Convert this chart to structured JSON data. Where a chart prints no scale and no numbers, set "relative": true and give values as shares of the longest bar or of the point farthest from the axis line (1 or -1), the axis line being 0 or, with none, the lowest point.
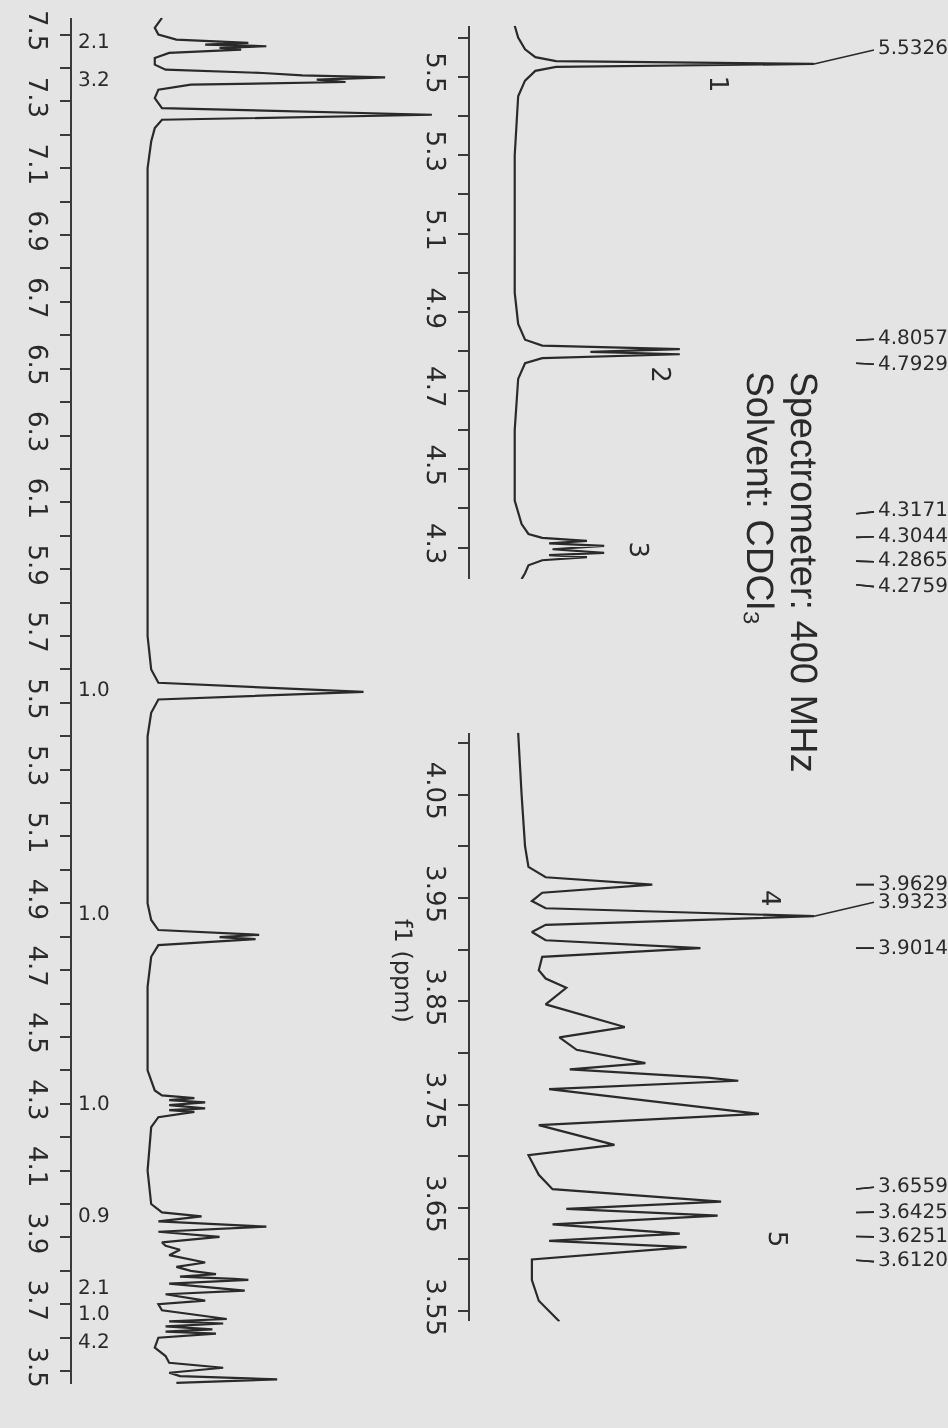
{
  "chart_data": [
    {
      "type": "line",
      "orientation": "horizontal",
      "relative": true,
      "color": "#2a2a2a",
      "x": [
        7.55,
        7.52,
        7.5,
        7.485,
        7.475,
        7.47,
        7.465,
        7.46,
        7.455,
        7.445,
        7.43,
        7.41,
        7.395,
        7.385,
        7.378,
        7.372,
        7.365,
        7.358,
        7.35,
        7.335,
        7.31,
        7.28,
        7.26,
        7.245,
        7.22,
        7.18,
        7.1,
        5.7,
        5.6,
        5.56,
        5.5326,
        5.51,
        5.47,
        5.4,
        4.9,
        4.85,
        4.82,
        4.8057,
        4.799,
        4.7929,
        4.775,
        4.74,
        4.65,
        4.4,
        4.34,
        4.325,
        4.3171,
        4.311,
        4.3044,
        4.296,
        4.2865,
        4.281,
        4.2759,
        4.26,
        4.23,
        4.1,
        4.0,
        3.975,
        3.9629,
        3.948,
        3.9323,
        3.917,
        3.9014,
        3.885,
        3.875,
        3.863,
        3.847,
        3.825,
        3.812,
        3.8,
        3.79,
        3.783,
        3.776,
        3.773,
        3.762,
        3.741,
        3.73,
        3.711,
        3.7,
        3.682,
        3.6559,
        3.649,
        3.6425,
        3.634,
        3.6251,
        3.618,
        3.612,
        3.6,
        3.57,
        3.545,
        3.525,
        3.51,
        3.495,
        3.485,
        3.475,
        3.465
      ],
      "values": [
        0.25,
        0.23,
        0.24,
        0.29,
        0.49,
        0.37,
        0.54,
        0.41,
        0.47,
        0.27,
        0.23,
        0.23,
        0.26,
        0.53,
        0.64,
        0.87,
        0.68,
        0.76,
        0.33,
        0.24,
        0.23,
        0.25,
        1.0,
        0.25,
        0.23,
        0.22,
        0.21,
        0.21,
        0.22,
        0.24,
        0.81,
        0.24,
        0.22,
        0.21,
        0.21,
        0.22,
        0.24,
        0.52,
        0.41,
        0.51,
        0.24,
        0.22,
        0.21,
        0.21,
        0.23,
        0.25,
        0.34,
        0.27,
        0.37,
        0.27,
        0.37,
        0.27,
        0.34,
        0.24,
        0.22,
        0.21,
        0.22,
        0.25,
        0.36,
        0.24,
        0.54,
        0.24,
        0.41,
        0.25,
        0.26,
        0.3,
        0.27,
        0.37,
        0.29,
        0.33,
        0.4,
        0.3,
        0.45,
        0.49,
        0.27,
        0.48,
        0.26,
        0.37,
        0.24,
        0.25,
        0.43,
        0.27,
        0.42,
        0.26,
        0.39,
        0.26,
        0.4,
        0.24,
        0.23,
        0.26,
        0.27,
        0.42,
        0.27,
        0.3,
        0.57,
        0.29
      ],
      "ylim": [
        3.46,
        7.55
      ],
      "yticks": [
        7.5,
        {
          "value": 7.4,
          "label": null
        },
        7.3,
        {
          "value": 7.2,
          "label": null
        },
        7.1,
        {
          "value": 7.0,
          "label": null
        },
        6.9,
        {
          "value": 6.8,
          "label": null
        },
        6.7,
        {
          "value": 6.6,
          "label": null
        },
        6.5,
        {
          "value": 6.4,
          "label": null
        },
        6.3,
        {
          "value": 6.2,
          "label": null
        },
        6.1,
        {
          "value": 6.0,
          "label": null
        },
        5.9,
        {
          "value": 5.8,
          "label": null
        },
        5.7,
        {
          "value": 5.6,
          "label": null
        },
        5.5,
        {
          "value": 5.4,
          "label": null
        },
        5.3,
        {
          "value": 5.2,
          "label": null
        },
        5.1,
        {
          "value": 5.0,
          "label": null
        },
        4.9,
        {
          "value": 4.8,
          "label": null
        },
        4.7,
        {
          "value": 4.6,
          "label": null
        },
        4.5,
        {
          "value": 4.4,
          "label": null
        },
        4.3,
        {
          "value": 4.2,
          "label": null
        },
        4.1,
        {
          "value": 4.0,
          "label": null
        },
        3.9,
        {
          "value": 3.8,
          "label": null
        },
        3.7,
        {
          "value": 3.6,
          "label": null
        },
        3.5
      ],
      "annotations": [
        "2.1",
        "3.2",
        "1.0",
        "1.0",
        "1.0",
        "0.9",
        "2.1",
        "1.0",
        "4.2"
      ]
    },
    {
      "type": "line",
      "orientation": "horizontal",
      "relative": true,
      "color": "#2a2a2a",
      "x": [
        5.63,
        5.6,
        5.57,
        5.55,
        5.54,
        5.5326,
        5.525,
        5.515,
        5.49,
        5.45,
        5.3,
        4.95,
        4.87,
        4.83,
        4.815,
        4.8057,
        4.799,
        4.7929,
        4.783,
        4.77,
        4.73,
        4.6,
        4.42,
        4.36,
        4.335,
        4.325,
        4.3171,
        4.311,
        4.3044,
        4.296,
        4.2865,
        4.281,
        4.2759,
        4.268,
        4.255,
        4.235,
        4.22
      ],
      "values": [
        0.13,
        0.14,
        0.16,
        0.19,
        0.25,
        1.0,
        0.25,
        0.19,
        0.16,
        0.14,
        0.13,
        0.13,
        0.14,
        0.16,
        0.21,
        0.61,
        0.35,
        0.61,
        0.21,
        0.16,
        0.14,
        0.13,
        0.13,
        0.15,
        0.17,
        0.21,
        0.34,
        0.23,
        0.39,
        0.24,
        0.39,
        0.23,
        0.34,
        0.21,
        0.17,
        0.16,
        0.15
      ],
      "ylim": [
        4.22,
        5.63
      ],
      "yticks": [
        {
          "value": 5.6,
          "label": null
        },
        5.5,
        {
          "value": 5.4,
          "label": null
        },
        5.3,
        {
          "value": 5.2,
          "label": null
        },
        5.1,
        {
          "value": 5.0,
          "label": null
        },
        4.9,
        {
          "value": 4.8,
          "label": null
        },
        4.7,
        {
          "value": 4.6,
          "label": null
        },
        4.5,
        {
          "value": 4.4,
          "label": null
        },
        4.3
      ],
      "annotations": [
        "1",
        "2",
        "3",
        {
          "text": "5.5326",
          "x": 1.0,
          "y": 5.5326
        },
        {
          "text": "4.8057",
          "x": 0.61,
          "y": 4.8057
        },
        {
          "text": "4.7929",
          "x": 0.61,
          "y": 4.7929
        },
        {
          "text": "4.3171",
          "x": 0.34,
          "y": 4.3171
        },
        {
          "text": "4.3044",
          "x": 0.39,
          "y": 4.3044
        },
        {
          "text": "4.2865",
          "x": 0.39,
          "y": 4.2865
        },
        {
          "text": "4.2759",
          "x": 0.34,
          "y": 4.2759
        },
        "Spectrometer: 400 MHz",
        "Solvent: CDCl₃"
      ]
    },
    {
      "type": "line",
      "orientation": "horizontal",
      "relative": true,
      "color": "#2a2a2a",
      "x": [
        4.11,
        4.05,
        4.0,
        3.98,
        3.97,
        3.9629,
        3.955,
        3.947,
        3.94,
        3.9323,
        3.924,
        3.917,
        3.909,
        3.9014,
        3.893,
        3.88,
        3.872,
        3.863,
        3.847,
        3.825,
        3.815,
        3.803,
        3.79,
        3.784,
        3.776,
        3.773,
        3.765,
        3.741,
        3.73,
        3.711,
        3.701,
        3.682,
        3.668,
        3.6559,
        3.649,
        3.6425,
        3.634,
        3.6251,
        3.618,
        3.612,
        3.6,
        3.58,
        3.56,
        3.54
      ],
      "values": [
        0.14,
        0.15,
        0.16,
        0.17,
        0.22,
        0.53,
        0.21,
        0.18,
        0.22,
        1.0,
        0.22,
        0.18,
        0.22,
        0.67,
        0.21,
        0.2,
        0.22,
        0.28,
        0.22,
        0.45,
        0.26,
        0.31,
        0.51,
        0.29,
        0.69,
        0.78,
        0.23,
        0.84,
        0.2,
        0.42,
        0.17,
        0.2,
        0.24,
        0.73,
        0.28,
        0.72,
        0.24,
        0.61,
        0.23,
        0.63,
        0.18,
        0.18,
        0.2,
        0.26
      ],
      "ylim": [
        3.54,
        4.11
      ],
      "yticks": [
        {
          "value": 4.1,
          "label": null
        },
        4.05,
        {
          "value": 4.0,
          "label": null
        },
        3.95,
        {
          "value": 3.9,
          "label": null
        },
        3.85,
        {
          "value": 3.8,
          "label": null
        },
        3.75,
        {
          "value": 3.7,
          "label": null
        },
        3.65,
        {
          "value": 3.6,
          "label": null
        },
        3.55
      ],
      "ylabel": "f1 (ppm)",
      "annotations": [
        "4",
        "5",
        {
          "text": "3.9629",
          "x": 0.53,
          "y": 3.9629
        },
        {
          "text": "3.9323",
          "x": 1.0,
          "y": 3.9323
        },
        {
          "text": "3.9014",
          "x": 0.67,
          "y": 3.9014
        },
        {
          "text": "3.6559",
          "x": 0.73,
          "y": 3.6559
        },
        {
          "text": "3.6425",
          "x": 0.72,
          "y": 3.6425
        },
        {
          "text": "3.6251",
          "x": 0.61,
          "y": 3.6251
        },
        {
          "text": "3.6120",
          "x": 0.63,
          "y": 3.612
        }
      ]
    }
  ]
}
